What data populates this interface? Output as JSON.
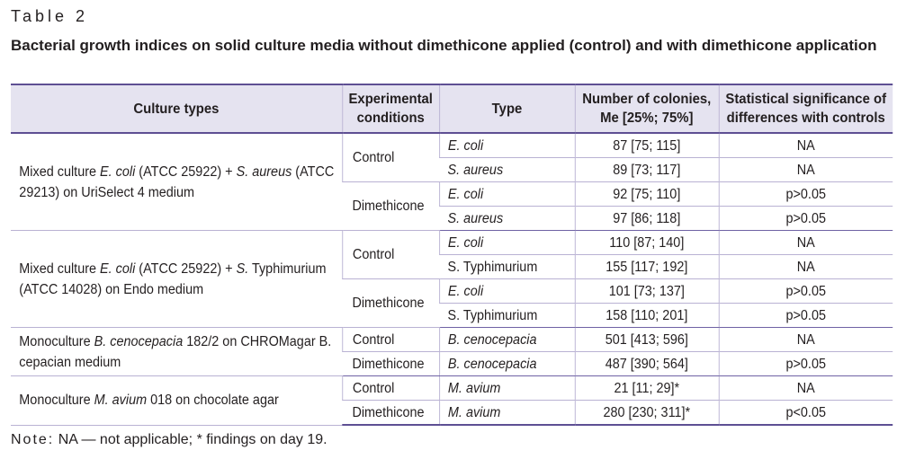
{
  "table_label": "Table 2",
  "caption": "Bacterial growth indices on solid culture media without dimethicone applied (control) and with dimethicone application",
  "headers": {
    "culture": "Culture types",
    "conditions": "Experimental conditions",
    "type": "Type",
    "colonies": "Number of colonies, Me [25%; 75%]",
    "significance": "Statistical significance of differences with controls"
  },
  "groups": [
    {
      "culture_parts": [
        "Mixed culture ",
        "E. coli",
        " (ATCC 25922) + ",
        "S. aureus",
        " (ATCC 29213) on UriSelect 4 medium"
      ],
      "conditions": [
        {
          "label": "Control",
          "rows": [
            {
              "type": "E. coli",
              "colonies": "87 [75; 115]",
              "significance": "NA"
            },
            {
              "type": "S. aureus",
              "colonies": "89 [73; 117]",
              "significance": "NA"
            }
          ]
        },
        {
          "label": "Dimethicone",
          "rows": [
            {
              "type": "E. coli",
              "colonies": "92 [75; 110]",
              "significance": "p>0.05"
            },
            {
              "type": "S. aureus",
              "colonies": "97 [86; 118]",
              "significance": "p>0.05"
            }
          ]
        }
      ]
    },
    {
      "culture_parts": [
        "Mixed culture ",
        "E. coli",
        " (ATCC 25922) + ",
        "S.",
        " Typhimurium (ATCC 14028) on Endo medium"
      ],
      "conditions": [
        {
          "label": "Control",
          "rows": [
            {
              "type": "E. coli",
              "colonies": "110 [87; 140]",
              "significance": "NA"
            },
            {
              "type": "S. Typhimurium",
              "colonies": "155 [117; 192]",
              "significance": "NA"
            }
          ]
        },
        {
          "label": "Dimethicone",
          "rows": [
            {
              "type": "E. coli",
              "colonies": "101 [73; 137]",
              "significance": "p>0.05"
            },
            {
              "type": "S. Typhimurium",
              "colonies": "158 [110; 201]",
              "significance": "p>0.05"
            }
          ]
        }
      ]
    },
    {
      "culture_parts": [
        "Monoculture ",
        "B. cenocepacia",
        " 182/2 on CHROMagar B. cepacian medium"
      ],
      "conditions": [
        {
          "label": "Control",
          "rows": [
            {
              "type": "B. cenocepacia",
              "colonies": "501 [413; 596]",
              "significance": "NA"
            }
          ]
        },
        {
          "label": "Dimethicone",
          "rows": [
            {
              "type": "B. cenocepacia",
              "colonies": "487 [390; 564]",
              "significance": "p>0.05"
            }
          ]
        }
      ]
    },
    {
      "culture_parts": [
        "Monoculture ",
        "M. avium",
        " 018 on chocolate agar"
      ],
      "conditions": [
        {
          "label": "Control",
          "rows": [
            {
              "type": "M. avium",
              "colonies": "21 [11; 29]*",
              "significance": "NA"
            }
          ]
        },
        {
          "label": "Dimethicone",
          "rows": [
            {
              "type": "M. avium",
              "colonies": "280 [230; 311]*",
              "significance": "p<0.05"
            }
          ]
        }
      ]
    }
  ],
  "note": {
    "label": "Note:",
    "text": " NA — not applicable; * findings on day 19."
  }
}
